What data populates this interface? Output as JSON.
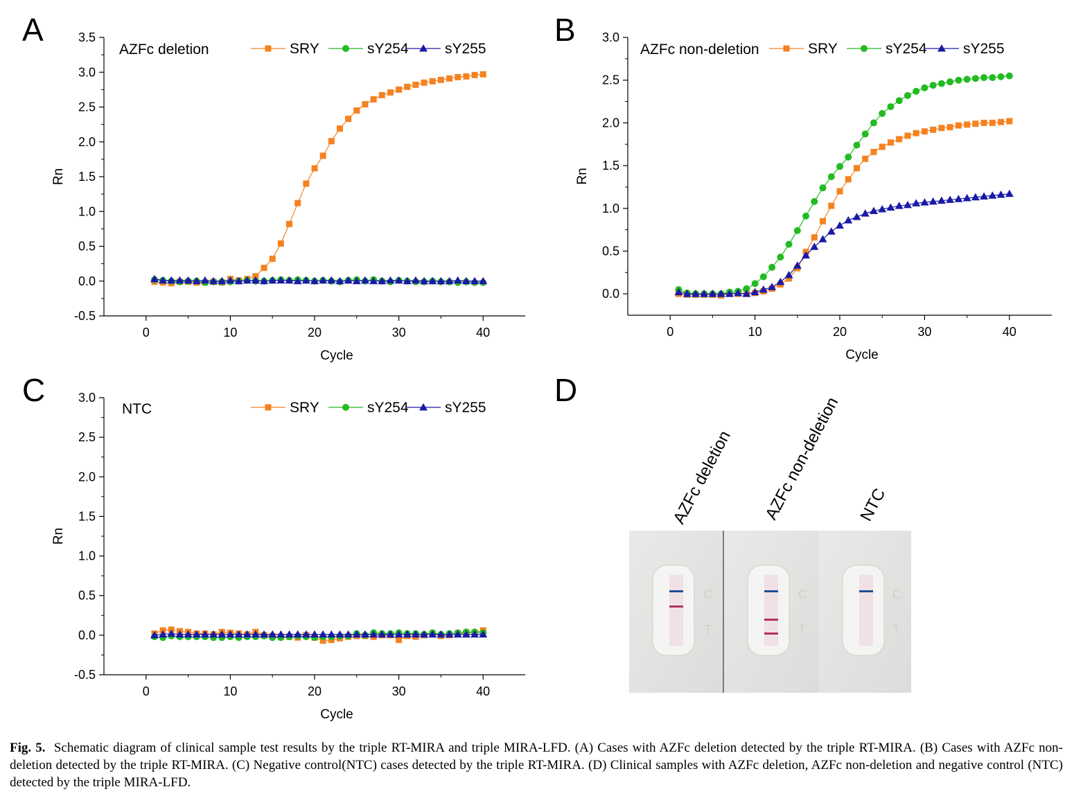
{
  "panels": {
    "A": {
      "letter": "A"
    },
    "B": {
      "letter": "B"
    },
    "C": {
      "letter": "C"
    },
    "D": {
      "letter": "D"
    }
  },
  "legend": {
    "SRY": "SRY",
    "sY254": "sY254",
    "sY255": "sY255"
  },
  "colors": {
    "SRY": "#f58220",
    "sY254": "#22bb22",
    "sY255": "#1a1aa6"
  },
  "lfd": {
    "labels": [
      "AZFc deletion",
      "AZFc non-deletion",
      "NTC"
    ],
    "c_letter": "C",
    "t_letter": "T"
  },
  "caption": {
    "fig_label": "Fig. 5.",
    "text": "Schematic diagram of clinical sample test results by the triple RT-MIRA and triple MIRA-LFD. (A) Cases with AZFc deletion detected by the triple RT-MIRA. (B) Cases with AZFc non-deletion detected by the triple RT-MIRA. (C) Negative control(NTC) cases detected by the triple RT-MIRA. (D) Clinical samples with AZFc deletion, AZFc non-deletion and negative control (NTC) detected by the triple MIRA-LFD."
  },
  "chart_data": [
    {
      "id": "A",
      "type": "scatter",
      "title": "AZFc deletion",
      "xlabel": "Cycle",
      "ylabel": "Rn",
      "xlim": [
        -5,
        45
      ],
      "ylim": [
        -0.5,
        3.5
      ],
      "xticks": [
        "0",
        "10",
        "20",
        "30",
        "40"
      ],
      "yticks": [
        "-0.5",
        "0.0",
        "0.5",
        "1.0",
        "1.5",
        "2.0",
        "2.5",
        "3.0",
        "3.5"
      ],
      "x": [
        1,
        2,
        3,
        4,
        5,
        6,
        7,
        8,
        9,
        10,
        11,
        12,
        13,
        14,
        15,
        16,
        17,
        18,
        19,
        20,
        21,
        22,
        23,
        24,
        25,
        26,
        27,
        28,
        29,
        30,
        31,
        32,
        33,
        34,
        35,
        36,
        37,
        38,
        39,
        40
      ],
      "series": [
        {
          "name": "SRY",
          "marker": "square",
          "values": [
            -0.01,
            -0.02,
            -0.03,
            -0.01,
            -0.01,
            -0.02,
            -0.02,
            -0.01,
            -0.02,
            0.03,
            0.01,
            0.03,
            0.07,
            0.19,
            0.32,
            0.54,
            0.82,
            1.12,
            1.4,
            1.62,
            1.8,
            2.01,
            2.19,
            2.33,
            2.45,
            2.54,
            2.61,
            2.67,
            2.71,
            2.75,
            2.79,
            2.82,
            2.85,
            2.87,
            2.89,
            2.91,
            2.93,
            2.94,
            2.96,
            2.97
          ]
        },
        {
          "name": "sY254",
          "marker": "circle",
          "values": [
            0.02,
            0.01,
            0.0,
            -0.01,
            0.0,
            0.0,
            -0.02,
            -0.01,
            -0.01,
            -0.01,
            0.0,
            0.01,
            0.0,
            0.0,
            0.01,
            0.02,
            0.01,
            0.02,
            0.01,
            0.0,
            0.01,
            0.0,
            -0.01,
            0.01,
            0.02,
            0.0,
            0.02,
            0.0,
            -0.01,
            0.01,
            0.0,
            -0.01,
            -0.01,
            0.0,
            -0.01,
            -0.01,
            -0.02,
            -0.01,
            -0.02,
            -0.02
          ]
        },
        {
          "name": "sY255",
          "marker": "triangle",
          "values": [
            0.03,
            0.01,
            0.01,
            0.01,
            0.01,
            0.0,
            0.01,
            0.0,
            0.0,
            0.01,
            0.0,
            0.01,
            0.01,
            0.0,
            0.01,
            0.01,
            0.01,
            0.0,
            0.01,
            0.0,
            0.01,
            0.01,
            0.0,
            0.01,
            0.0,
            0.01,
            0.0,
            0.0,
            0.01,
            0.01,
            0.0,
            0.01,
            0.0,
            0.0,
            0.0,
            0.0,
            0.01,
            0.0,
            0.0,
            0.0
          ]
        }
      ]
    },
    {
      "id": "B",
      "type": "scatter",
      "title": "AZFc non-deletion",
      "xlabel": "Cycle",
      "ylabel": "Rn",
      "xlim": [
        -5,
        45
      ],
      "ylim": [
        -0.25,
        3.0
      ],
      "xticks": [
        "0",
        "10",
        "20",
        "30",
        "40"
      ],
      "yticks": [
        "0.0",
        "0.5",
        "1.0",
        "1.5",
        "2.0",
        "2.5",
        "3.0"
      ],
      "x": [
        1,
        2,
        3,
        4,
        5,
        6,
        7,
        8,
        9,
        10,
        11,
        12,
        13,
        14,
        15,
        16,
        17,
        18,
        19,
        20,
        21,
        22,
        23,
        24,
        25,
        26,
        27,
        28,
        29,
        30,
        31,
        32,
        33,
        34,
        35,
        36,
        37,
        38,
        39,
        40
      ],
      "series": [
        {
          "name": "SRY",
          "marker": "square",
          "values": [
            0.0,
            -0.01,
            -0.01,
            -0.01,
            -0.01,
            -0.02,
            0.0,
            0.0,
            0.0,
            0.01,
            0.03,
            0.06,
            0.11,
            0.18,
            0.3,
            0.49,
            0.66,
            0.85,
            1.03,
            1.2,
            1.34,
            1.47,
            1.58,
            1.66,
            1.72,
            1.77,
            1.81,
            1.85,
            1.88,
            1.9,
            1.92,
            1.94,
            1.95,
            1.97,
            1.98,
            1.99,
            2.0,
            2.0,
            2.01,
            2.02
          ]
        },
        {
          "name": "sY254",
          "marker": "circle",
          "values": [
            0.05,
            0.01,
            0.0,
            0.0,
            0.0,
            0.0,
            0.02,
            0.03,
            0.06,
            0.12,
            0.2,
            0.31,
            0.43,
            0.58,
            0.74,
            0.91,
            1.08,
            1.24,
            1.37,
            1.49,
            1.6,
            1.74,
            1.87,
            2.0,
            2.11,
            2.19,
            2.26,
            2.32,
            2.37,
            2.41,
            2.44,
            2.46,
            2.48,
            2.5,
            2.51,
            2.52,
            2.53,
            2.53,
            2.54,
            2.55
          ]
        },
        {
          "name": "sY255",
          "marker": "triangle",
          "values": [
            0.02,
            0.0,
            0.0,
            0.0,
            0.0,
            0.0,
            0.0,
            0.01,
            0.0,
            0.02,
            0.05,
            0.08,
            0.14,
            0.22,
            0.33,
            0.45,
            0.55,
            0.64,
            0.73,
            0.8,
            0.86,
            0.9,
            0.94,
            0.97,
            0.99,
            1.01,
            1.03,
            1.04,
            1.06,
            1.07,
            1.08,
            1.09,
            1.1,
            1.11,
            1.12,
            1.13,
            1.14,
            1.15,
            1.16,
            1.17
          ]
        }
      ]
    },
    {
      "id": "C",
      "type": "scatter",
      "title": "NTC",
      "xlabel": "Cycle",
      "ylabel": "Rn",
      "xlim": [
        -5,
        45
      ],
      "ylim": [
        -0.5,
        3.0
      ],
      "xticks": [
        "0",
        "10",
        "20",
        "30",
        "40"
      ],
      "yticks": [
        "-0.5",
        "0.0",
        "0.5",
        "1.0",
        "1.5",
        "2.0",
        "2.5",
        "3.0"
      ],
      "x": [
        1,
        2,
        3,
        4,
        5,
        6,
        7,
        8,
        9,
        10,
        11,
        12,
        13,
        14,
        15,
        16,
        17,
        18,
        19,
        20,
        21,
        22,
        23,
        24,
        25,
        26,
        27,
        28,
        29,
        30,
        31,
        32,
        33,
        34,
        35,
        36,
        37,
        38,
        39,
        40
      ],
      "series": [
        {
          "name": "SRY",
          "marker": "square",
          "values": [
            0.02,
            0.06,
            0.07,
            0.05,
            0.04,
            0.02,
            0.02,
            0.01,
            0.04,
            0.03,
            0.02,
            0.01,
            0.04,
            0.0,
            -0.01,
            -0.02,
            -0.02,
            -0.03,
            0.0,
            -0.03,
            -0.07,
            -0.06,
            -0.04,
            -0.02,
            -0.01,
            -0.01,
            -0.02,
            0.0,
            0.0,
            -0.06,
            -0.01,
            -0.02,
            0.0,
            0.02,
            -0.01,
            0.0,
            0.02,
            0.03,
            0.03,
            0.06
          ]
        },
        {
          "name": "sY254",
          "marker": "circle",
          "values": [
            -0.02,
            -0.03,
            -0.01,
            -0.02,
            -0.02,
            -0.02,
            -0.02,
            -0.03,
            -0.03,
            -0.02,
            -0.03,
            -0.02,
            -0.02,
            -0.01,
            -0.03,
            -0.03,
            -0.02,
            -0.01,
            -0.02,
            -0.03,
            -0.02,
            -0.02,
            -0.01,
            -0.01,
            0.02,
            0.0,
            0.03,
            0.02,
            0.02,
            0.03,
            0.02,
            0.02,
            0.01,
            0.03,
            0.01,
            0.02,
            0.03,
            0.04,
            0.04,
            0.03
          ]
        },
        {
          "name": "sY255",
          "marker": "triangle",
          "values": [
            0.0,
            0.01,
            0.02,
            0.01,
            0.01,
            0.01,
            0.01,
            0.01,
            0.01,
            0.01,
            0.01,
            0.01,
            0.01,
            0.01,
            0.01,
            0.01,
            0.01,
            0.01,
            0.01,
            0.01,
            0.01,
            0.01,
            0.01,
            0.01,
            0.01,
            0.01,
            0.01,
            0.01,
            0.01,
            0.01,
            0.01,
            0.01,
            0.01,
            0.01,
            0.01,
            0.01,
            0.01,
            0.01,
            0.01,
            0.01
          ]
        }
      ]
    }
  ]
}
